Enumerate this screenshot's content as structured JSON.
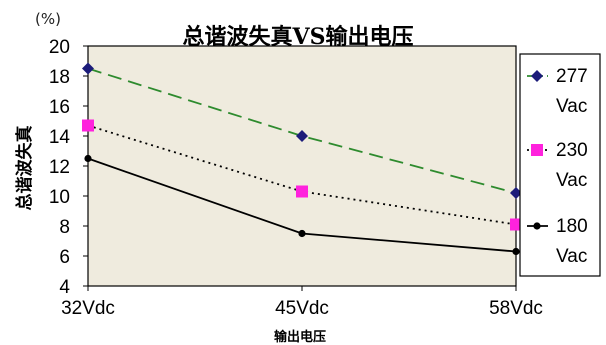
{
  "chart_data": {
    "type": "line",
    "title": "总谐波失真VS输出电压",
    "unit_label": "(%)",
    "xlabel": "输出电压",
    "ylabel": "总谐波失真",
    "categories": [
      "32Vdc",
      "45Vdc",
      "58Vdc"
    ],
    "ylim": [
      4,
      20
    ],
    "yticks": [
      4,
      6,
      8,
      10,
      12,
      14,
      16,
      18,
      20
    ],
    "grid": false,
    "legend_position": "right",
    "plot_background": "#efebde",
    "series": [
      {
        "name_line1": "277",
        "name_line2": "Vac",
        "values": [
          18.5,
          14.0,
          10.2
        ],
        "color": "#2e8b2e",
        "marker_color": "#1c1c7a",
        "marker": "diamond",
        "dash": "14,7"
      },
      {
        "name_line1": "230",
        "name_line2": "Vac",
        "values": [
          14.7,
          10.3,
          8.1
        ],
        "color": "#000000",
        "marker_color": "#ff22dd",
        "marker": "square",
        "dash": "2,4"
      },
      {
        "name_line1": "180",
        "name_line2": "Vac",
        "values": [
          12.5,
          7.5,
          6.3
        ],
        "color": "#000000",
        "marker_color": "#000000",
        "marker": "circle",
        "dash": ""
      }
    ]
  }
}
